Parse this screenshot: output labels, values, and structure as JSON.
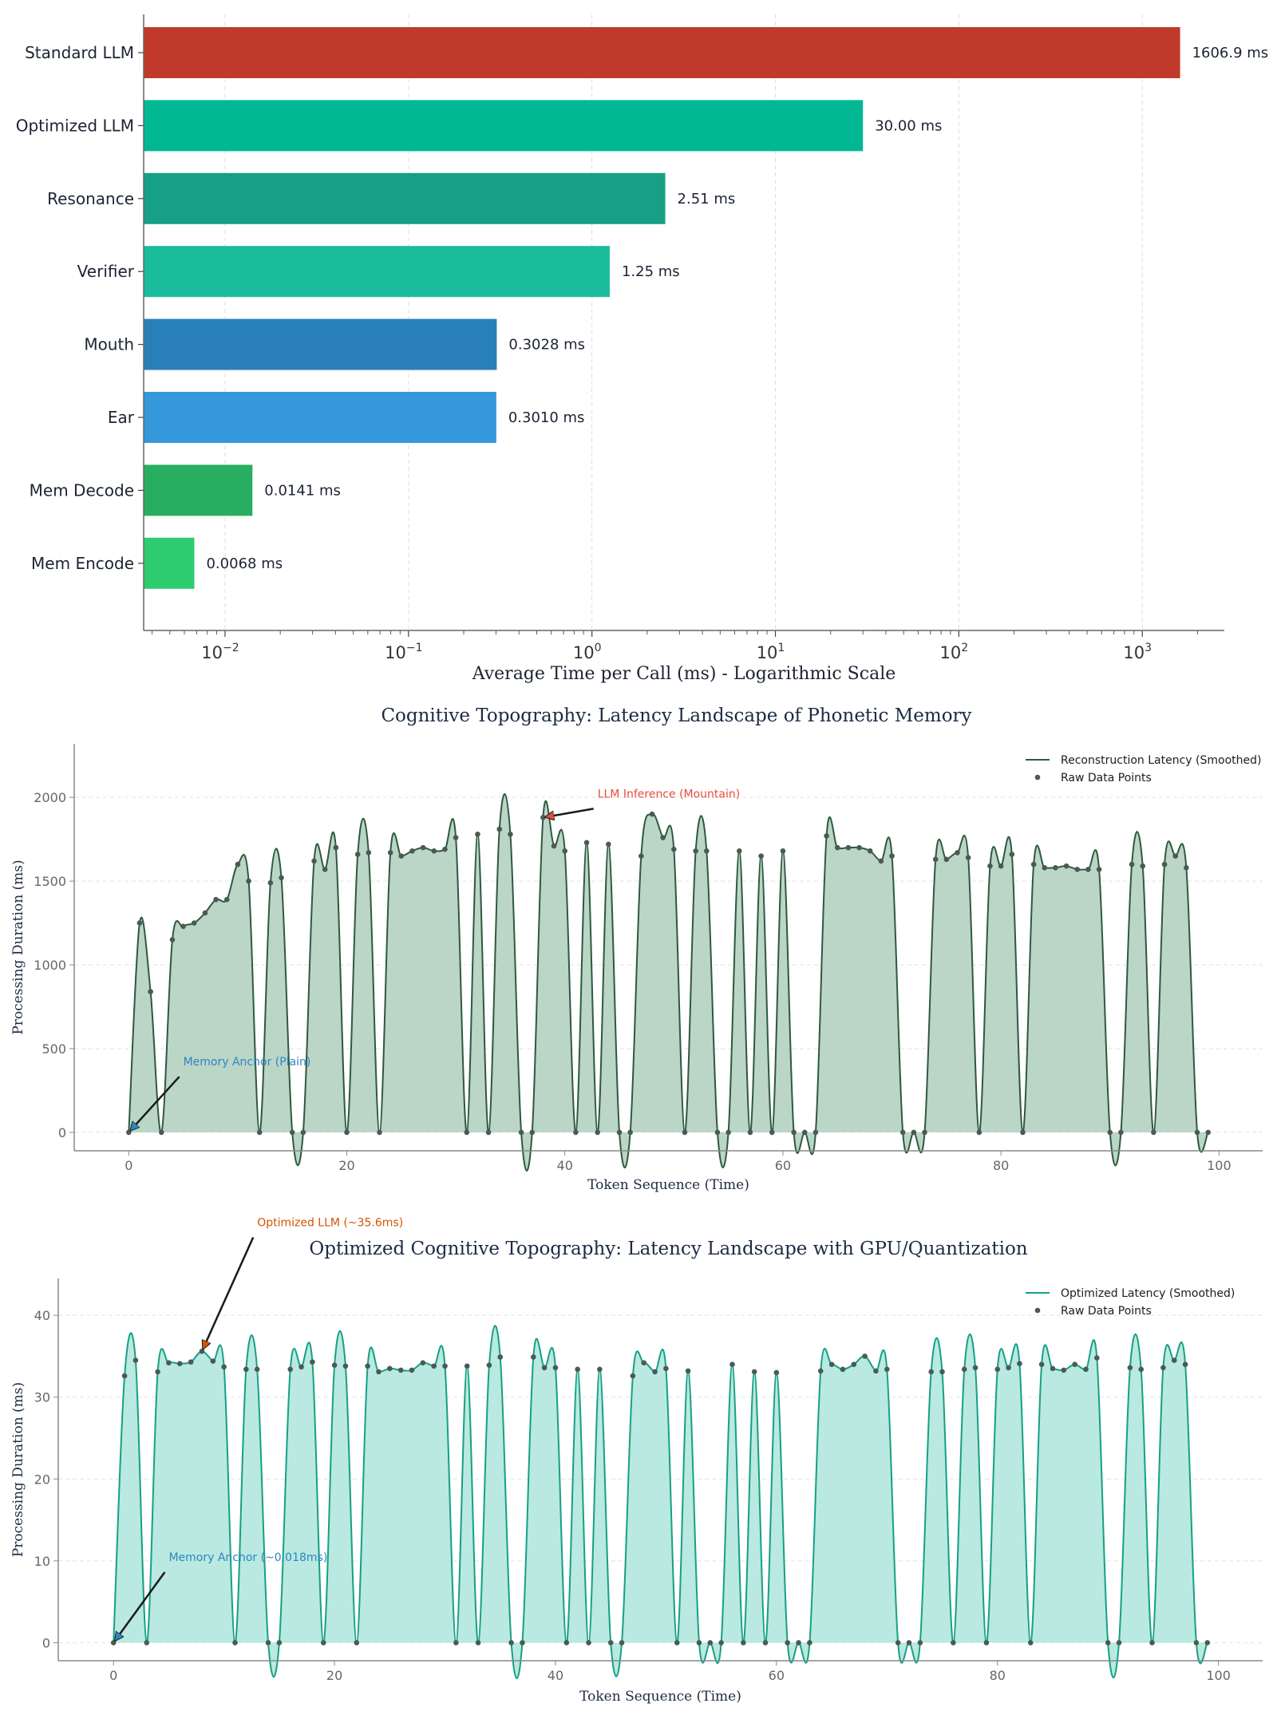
{
  "chart_data": [
    {
      "type": "bar",
      "orientation": "horizontal",
      "title": "",
      "xlabel": "Average Time per Call (ms) - Logarithmic Scale",
      "ylabel": "",
      "xscale": "log",
      "xlim": [
        0.0036,
        2800
      ],
      "x_ticks": [
        {
          "value": 0.01,
          "base": "10",
          "exp": "−2"
        },
        {
          "value": 0.1,
          "base": "10",
          "exp": "−1"
        },
        {
          "value": 1,
          "base": "10",
          "exp": "0"
        },
        {
          "value": 10,
          "base": "10",
          "exp": "1"
        },
        {
          "value": 100,
          "base": "10",
          "exp": "2"
        },
        {
          "value": 1000,
          "base": "10",
          "exp": "3"
        }
      ],
      "grid": true,
      "bars": [
        {
          "category": "Standard LLM",
          "value": 1606.9,
          "label": "1606.9 ms",
          "color": "#c0392b"
        },
        {
          "category": "Optimized LLM",
          "value": 30.0,
          "label": "30.00 ms",
          "color": "#00b894"
        },
        {
          "category": "Resonance",
          "value": 2.51,
          "label": "2.51 ms",
          "color": "#16a085"
        },
        {
          "category": "Verifier",
          "value": 1.25,
          "label": "1.25 ms",
          "color": "#1abc9c"
        },
        {
          "category": "Mouth",
          "value": 0.3028,
          "label": "0.3028 ms",
          "color": "#2980b9"
        },
        {
          "category": "Ear",
          "value": 0.301,
          "label": "0.3010 ms",
          "color": "#3498db"
        },
        {
          "category": "Mem Decode",
          "value": 0.0141,
          "label": "0.0141 ms",
          "color": "#27ae60"
        },
        {
          "category": "Mem Encode",
          "value": 0.0068,
          "label": "0.0068 ms",
          "color": "#2ecc71"
        }
      ]
    },
    {
      "type": "area",
      "title": "Cognitive Topography: Latency Landscape of Phonetic Memory",
      "xlabel": "Token Sequence (Time)",
      "ylabel": "Processing Duration (ms)",
      "xlim": [
        -5,
        104
      ],
      "ylim": [
        -110,
        2320
      ],
      "x_ticks": [
        0,
        20,
        40,
        60,
        80,
        100
      ],
      "y_ticks": [
        0,
        500,
        1000,
        1500,
        2000
      ],
      "grid": true,
      "legend": "top-right",
      "line_color": "#2d5a3d",
      "fill_color": "#b7d3c4",
      "series": [
        {
          "name": "Reconstruction Latency (Smoothed)",
          "kind": "line"
        },
        {
          "name": "Raw Data Points",
          "kind": "scatter"
        }
      ],
      "points": [
        [
          0,
          0
        ],
        [
          1,
          1250
        ],
        [
          2,
          840
        ],
        [
          3,
          0
        ],
        [
          4,
          1150
        ],
        [
          5,
          1230
        ],
        [
          6,
          1250
        ],
        [
          7,
          1310
        ],
        [
          8,
          1390
        ],
        [
          9,
          1390
        ],
        [
          10,
          1600
        ],
        [
          11,
          1500
        ],
        [
          12,
          0
        ],
        [
          13,
          1490
        ],
        [
          14,
          1520
        ],
        [
          15,
          0
        ],
        [
          16,
          0
        ],
        [
          17,
          1620
        ],
        [
          18,
          1570
        ],
        [
          19,
          1700
        ],
        [
          20,
          0
        ],
        [
          21,
          1660
        ],
        [
          22,
          1670
        ],
        [
          23,
          0
        ],
        [
          24,
          1670
        ],
        [
          25,
          1650
        ],
        [
          26,
          1680
        ],
        [
          27,
          1700
        ],
        [
          28,
          1680
        ],
        [
          29,
          1690
        ],
        [
          30,
          1760
        ],
        [
          31,
          0
        ],
        [
          32,
          1780
        ],
        [
          33,
          0
        ],
        [
          34,
          1810
        ],
        [
          35,
          1780
        ],
        [
          36,
          0
        ],
        [
          37,
          0
        ],
        [
          38,
          1880
        ],
        [
          39,
          1710
        ],
        [
          40,
          1680
        ],
        [
          41,
          0
        ],
        [
          42,
          1730
        ],
        [
          43,
          0
        ],
        [
          44,
          1720
        ],
        [
          45,
          0
        ],
        [
          46,
          0
        ],
        [
          47,
          1650
        ],
        [
          48,
          1900
        ],
        [
          49,
          1760
        ],
        [
          50,
          1690
        ],
        [
          51,
          0
        ],
        [
          52,
          1680
        ],
        [
          53,
          1680
        ],
        [
          54,
          0
        ],
        [
          55,
          0
        ],
        [
          56,
          1680
        ],
        [
          57,
          0
        ],
        [
          58,
          1650
        ],
        [
          59,
          0
        ],
        [
          60,
          1680
        ],
        [
          61,
          0
        ],
        [
          62,
          0
        ],
        [
          63,
          0
        ],
        [
          64,
          1770
        ],
        [
          65,
          1700
        ],
        [
          66,
          1700
        ],
        [
          67,
          1700
        ],
        [
          68,
          1680
        ],
        [
          69,
          1620
        ],
        [
          70,
          1650
        ],
        [
          71,
          0
        ],
        [
          72,
          0
        ],
        [
          73,
          0
        ],
        [
          74,
          1630
        ],
        [
          75,
          1630
        ],
        [
          76,
          1670
        ],
        [
          77,
          1640
        ],
        [
          78,
          0
        ],
        [
          79,
          1590
        ],
        [
          80,
          1590
        ],
        [
          81,
          1660
        ],
        [
          82,
          0
        ],
        [
          83,
          1600
        ],
        [
          84,
          1580
        ],
        [
          85,
          1580
        ],
        [
          86,
          1590
        ],
        [
          87,
          1570
        ],
        [
          88,
          1570
        ],
        [
          89,
          1570
        ],
        [
          90,
          0
        ],
        [
          91,
          0
        ],
        [
          92,
          1600
        ],
        [
          93,
          1590
        ],
        [
          94,
          0
        ],
        [
          95,
          1600
        ],
        [
          96,
          1650
        ],
        [
          97,
          1580
        ],
        [
          98,
          0
        ],
        [
          99,
          0
        ]
      ],
      "annotations": [
        {
          "text": "Memory Anchor (Plain)",
          "x": 0,
          "y": 0,
          "text_x": 5,
          "text_y": 380,
          "color": "#2e86c1"
        },
        {
          "text": "LLM Inference (Mountain)",
          "x": 38,
          "y": 1880,
          "text_x": 43,
          "text_y": 1980,
          "color": "#e74c3c"
        }
      ]
    },
    {
      "type": "area",
      "title": "Optimized Cognitive Topography: Latency Landscape with GPU/Quantization",
      "xlabel": "Token Sequence (Time)",
      "ylabel": "Processing Duration (ms)",
      "xlim": [
        -5,
        104
      ],
      "ylim": [
        -2.2,
        44.5
      ],
      "x_ticks": [
        0,
        20,
        40,
        60,
        80,
        100
      ],
      "y_ticks": [
        0,
        10,
        20,
        30,
        40
      ],
      "grid": true,
      "legend": "top-right",
      "line_color": "#16a085",
      "fill_color": "#b5e8de",
      "series": [
        {
          "name": "Optimized Latency (Smoothed)",
          "kind": "line"
        },
        {
          "name": "Raw Data Points",
          "kind": "scatter"
        }
      ],
      "points": [
        [
          0,
          0
        ],
        [
          1,
          32.6
        ],
        [
          2,
          34.5
        ],
        [
          3,
          0
        ],
        [
          4,
          33.1
        ],
        [
          5,
          34.2
        ],
        [
          6,
          34.1
        ],
        [
          7,
          34.3
        ],
        [
          8,
          35.6
        ],
        [
          9,
          34.4
        ],
        [
          10,
          33.7
        ],
        [
          11,
          0
        ],
        [
          12,
          33.4
        ],
        [
          13,
          33.4
        ],
        [
          14,
          0
        ],
        [
          15,
          0
        ],
        [
          16,
          33.4
        ],
        [
          17,
          33.7
        ],
        [
          18,
          34.3
        ],
        [
          19,
          0
        ],
        [
          20,
          33.9
        ],
        [
          21,
          33.8
        ],
        [
          22,
          0
        ],
        [
          23,
          33.8
        ],
        [
          24,
          33.1
        ],
        [
          25,
          33.5
        ],
        [
          26,
          33.3
        ],
        [
          27,
          33.3
        ],
        [
          28,
          34.2
        ],
        [
          29,
          33.8
        ],
        [
          30,
          33.8
        ],
        [
          31,
          0
        ],
        [
          32,
          33.8
        ],
        [
          33,
          0
        ],
        [
          34,
          33.9
        ],
        [
          35,
          34.9
        ],
        [
          36,
          0
        ],
        [
          37,
          0
        ],
        [
          38,
          34.9
        ],
        [
          39,
          33.6
        ],
        [
          40,
          33.6
        ],
        [
          41,
          0
        ],
        [
          42,
          33.4
        ],
        [
          43,
          0
        ],
        [
          44,
          33.4
        ],
        [
          45,
          0
        ],
        [
          46,
          0
        ],
        [
          47,
          32.6
        ],
        [
          48,
          34.2
        ],
        [
          49,
          33.1
        ],
        [
          50,
          33.5
        ],
        [
          51,
          0
        ],
        [
          52,
          33.2
        ],
        [
          53,
          0
        ],
        [
          54,
          0
        ],
        [
          55,
          0
        ],
        [
          56,
          34.0
        ],
        [
          57,
          0
        ],
        [
          58,
          33.1
        ],
        [
          59,
          0
        ],
        [
          60,
          33.0
        ],
        [
          61,
          0
        ],
        [
          62,
          0
        ],
        [
          63,
          0
        ],
        [
          64,
          33.2
        ],
        [
          65,
          34.0
        ],
        [
          66,
          33.4
        ],
        [
          67,
          34.0
        ],
        [
          68,
          35.0
        ],
        [
          69,
          33.2
        ],
        [
          70,
          33.4
        ],
        [
          71,
          0
        ],
        [
          72,
          0
        ],
        [
          73,
          0
        ],
        [
          74,
          33.1
        ],
        [
          75,
          33.1
        ],
        [
          76,
          0
        ],
        [
          77,
          33.4
        ],
        [
          78,
          33.6
        ],
        [
          79,
          0
        ],
        [
          80,
          33.4
        ],
        [
          81,
          33.6
        ],
        [
          82,
          34.1
        ],
        [
          83,
          0
        ],
        [
          84,
          34.0
        ],
        [
          85,
          33.5
        ],
        [
          86,
          33.3
        ],
        [
          87,
          34.0
        ],
        [
          88,
          33.4
        ],
        [
          89,
          34.8
        ],
        [
          90,
          0
        ],
        [
          91,
          0
        ],
        [
          92,
          33.6
        ],
        [
          93,
          33.4
        ],
        [
          94,
          0
        ],
        [
          95,
          33.6
        ],
        [
          96,
          34.5
        ],
        [
          97,
          34.0
        ],
        [
          98,
          0
        ],
        [
          99,
          0
        ]
      ],
      "annotations": [
        {
          "text": "Memory Anchor (~0.018ms)",
          "x": 0,
          "y": 0,
          "text_x": 5,
          "text_y": 9.6,
          "color": "#2e86c1"
        },
        {
          "text": "Optimized LLM (~35.6ms)",
          "x": 8,
          "y": 35.6,
          "text_x": 13,
          "text_y": 50.5,
          "color": "#d35400"
        }
      ]
    }
  ]
}
